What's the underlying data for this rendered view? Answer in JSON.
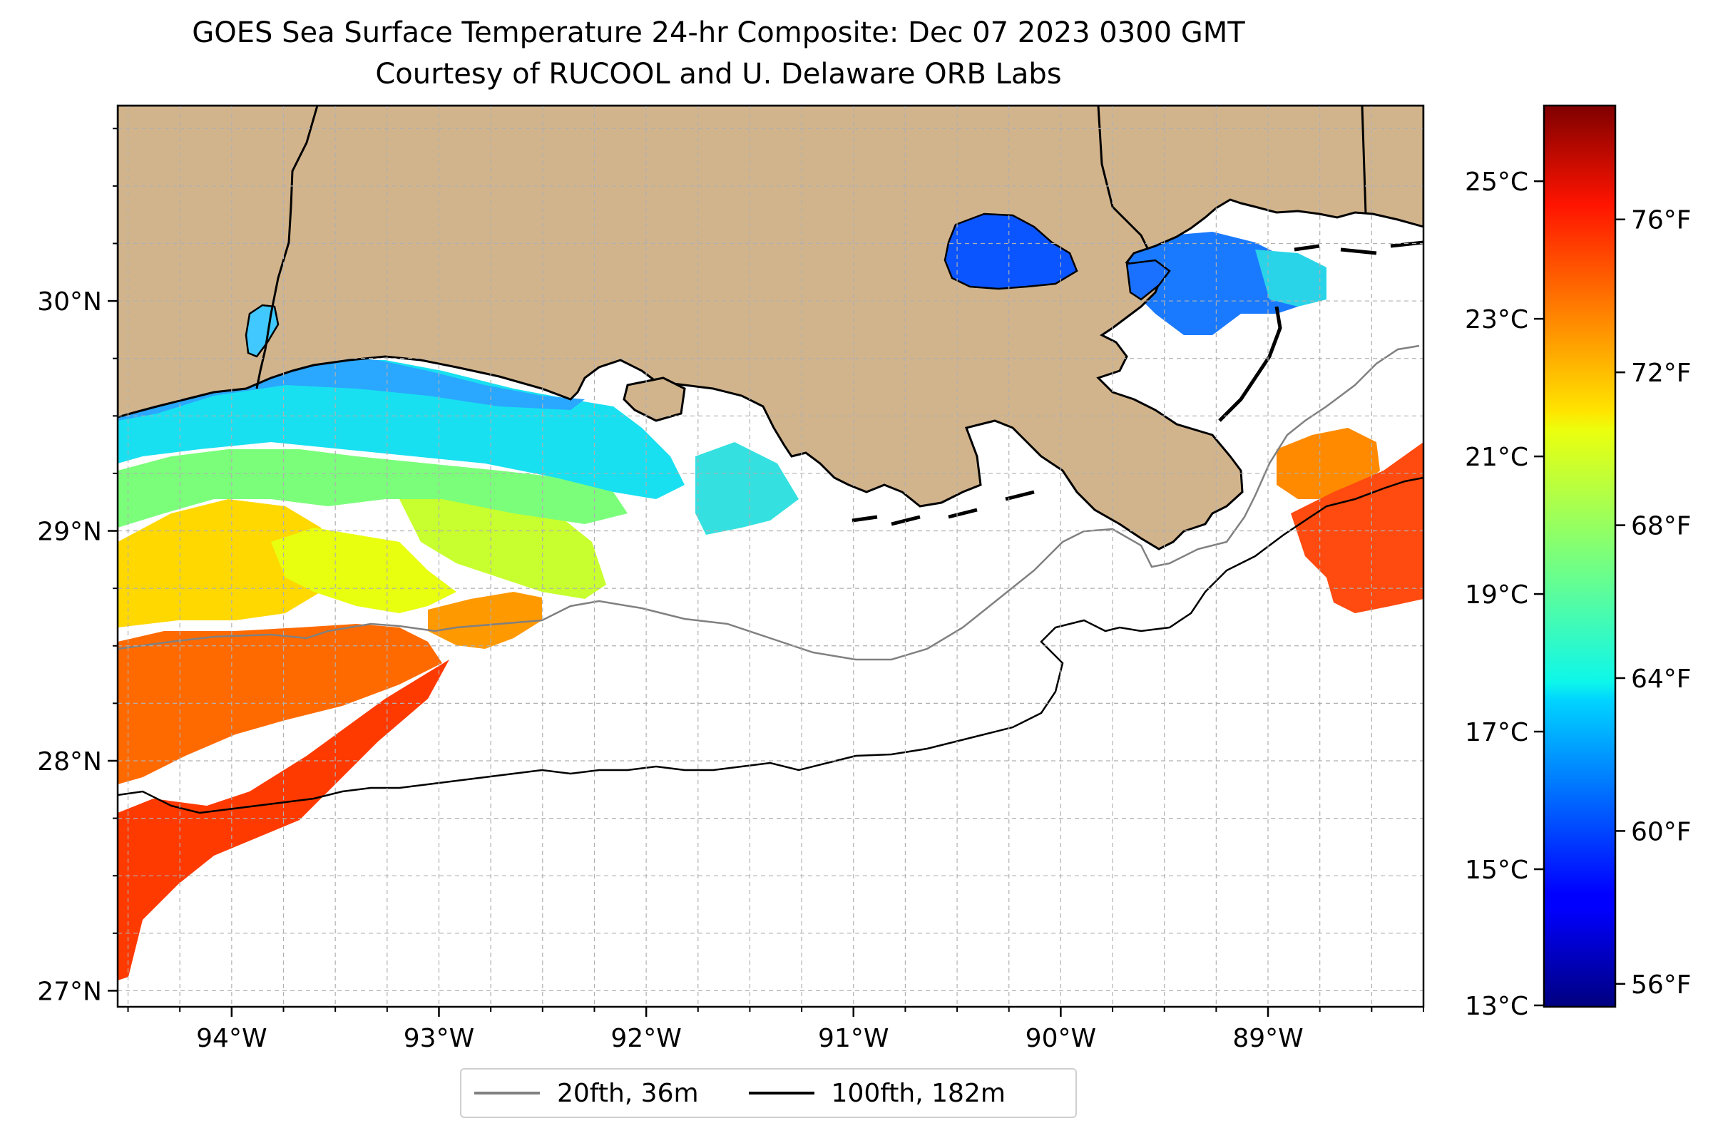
{
  "title": "GOES Sea Surface Temperature 24-hr Composite: Dec 07 2023 0300 GMT",
  "subtitle": "Courtesy of RUCOOL and U. Delaware ORB Labs",
  "map": {
    "lon_range": [
      -94.55,
      -88.25
    ],
    "lat_range": [
      26.93,
      30.85
    ],
    "lon_ticks": [
      -94,
      -93,
      -92,
      -91,
      -90,
      -89
    ],
    "lon_tick_labels": [
      "94°W",
      "93°W",
      "92°W",
      "91°W",
      "90°W",
      "89°W"
    ],
    "lat_ticks": [
      27,
      28,
      29,
      30
    ],
    "lat_tick_labels": [
      "27°N",
      "28°N",
      "29°N",
      "30°N"
    ],
    "land_color": "#d2b48c",
    "no_data_color": "#ffffff",
    "gridlines": true
  },
  "colorbar": {
    "celsius_range": [
      13,
      26.1
    ],
    "celsius_ticks": [
      13,
      15,
      17,
      19,
      21,
      23,
      25
    ],
    "celsius_labels": [
      "13°C",
      "15°C",
      "17°C",
      "19°C",
      "21°C",
      "23°C",
      "25°C"
    ],
    "fahrenheit_ticks": [
      56,
      60,
      64,
      68,
      72,
      76
    ],
    "fahrenheit_labels": [
      "56°F",
      "60°F",
      "64°F",
      "68°F",
      "72°F",
      "76°F"
    ],
    "colormap": "jet"
  },
  "legend": {
    "items": [
      {
        "label": "20fth, 36m",
        "color": "#808080"
      },
      {
        "label": "100fth, 182m",
        "color": "#000000"
      }
    ]
  }
}
